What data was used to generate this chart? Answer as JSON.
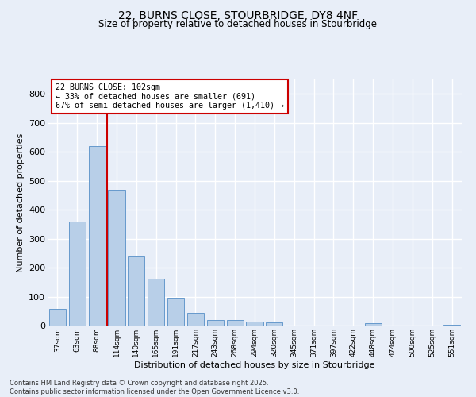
{
  "title1": "22, BURNS CLOSE, STOURBRIDGE, DY8 4NF",
  "title2": "Size of property relative to detached houses in Stourbridge",
  "xlabel": "Distribution of detached houses by size in Stourbridge",
  "ylabel": "Number of detached properties",
  "categories": [
    "37sqm",
    "63sqm",
    "88sqm",
    "114sqm",
    "140sqm",
    "165sqm",
    "191sqm",
    "217sqm",
    "243sqm",
    "268sqm",
    "294sqm",
    "320sqm",
    "345sqm",
    "371sqm",
    "397sqm",
    "422sqm",
    "448sqm",
    "474sqm",
    "500sqm",
    "525sqm",
    "551sqm"
  ],
  "values": [
    57,
    360,
    620,
    470,
    238,
    162,
    97,
    45,
    18,
    18,
    15,
    12,
    0,
    0,
    0,
    0,
    8,
    0,
    0,
    0,
    3
  ],
  "bar_color": "#b8cfe8",
  "bar_edge_color": "#6699cc",
  "background_color": "#e8eef8",
  "grid_color": "#ffffff",
  "vline_x": 2.5,
  "vline_color": "#cc0000",
  "annotation_text": "22 BURNS CLOSE: 102sqm\n← 33% of detached houses are smaller (691)\n67% of semi-detached houses are larger (1,410) →",
  "annotation_box_color": "#cc0000",
  "footer1": "Contains HM Land Registry data © Crown copyright and database right 2025.",
  "footer2": "Contains public sector information licensed under the Open Government Licence v3.0.",
  "ylim": [
    0,
    850
  ],
  "yticks": [
    0,
    100,
    200,
    300,
    400,
    500,
    600,
    700,
    800
  ],
  "figsize": [
    6.0,
    5.0
  ],
  "dpi": 100
}
